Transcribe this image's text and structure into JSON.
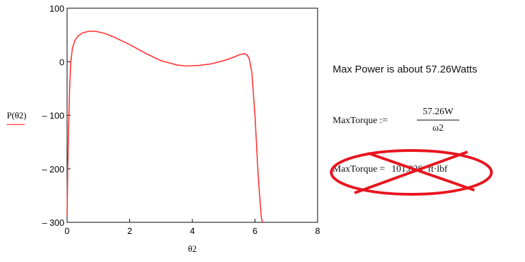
{
  "chart_data": {
    "type": "line",
    "xlabel": "θ2",
    "ylabel": "P(θ2)",
    "xlim": [
      0,
      8
    ],
    "ylim": [
      -300,
      100
    ],
    "x_ticks": [
      "0",
      "2",
      "4",
      "6",
      "8"
    ],
    "y_ticks": [
      "100",
      "0",
      "– 100",
      "– 200",
      "– 300"
    ],
    "grid": false,
    "legend": "none",
    "series": [
      {
        "color": "#ff3030",
        "points": [
          [
            0.0,
            -290
          ],
          [
            0.02,
            -200
          ],
          [
            0.05,
            -120
          ],
          [
            0.08,
            -50
          ],
          [
            0.12,
            0
          ],
          [
            0.17,
            25
          ],
          [
            0.25,
            40
          ],
          [
            0.35,
            48
          ],
          [
            0.5,
            54
          ],
          [
            0.7,
            57
          ],
          [
            0.9,
            57
          ],
          [
            1.2,
            53
          ],
          [
            1.5,
            46
          ],
          [
            2.0,
            32
          ],
          [
            2.5,
            16
          ],
          [
            3.0,
            2
          ],
          [
            3.5,
            -6
          ],
          [
            3.8,
            -8
          ],
          [
            4.2,
            -7
          ],
          [
            4.6,
            -4
          ],
          [
            5.0,
            2
          ],
          [
            5.3,
            8
          ],
          [
            5.5,
            13
          ],
          [
            5.65,
            15
          ],
          [
            5.75,
            13
          ],
          [
            5.82,
            5
          ],
          [
            5.9,
            -20
          ],
          [
            6.0,
            -100
          ],
          [
            6.1,
            -210
          ],
          [
            6.2,
            -290
          ],
          [
            6.24,
            -300
          ]
        ]
      }
    ]
  },
  "annotations": {
    "power_note": "Max Power is about 57.26Watts",
    "definition_lhs": "MaxTorque :=",
    "definition_numerator": "57.26W",
    "definition_denominator": "ω2",
    "result_label": "MaxTorque =",
    "result_value": "101.826",
    "result_unit": "ft·lbf"
  },
  "colors": {
    "curve": "#ff3030",
    "crossout": "#e8141e",
    "axis": "#000000"
  }
}
